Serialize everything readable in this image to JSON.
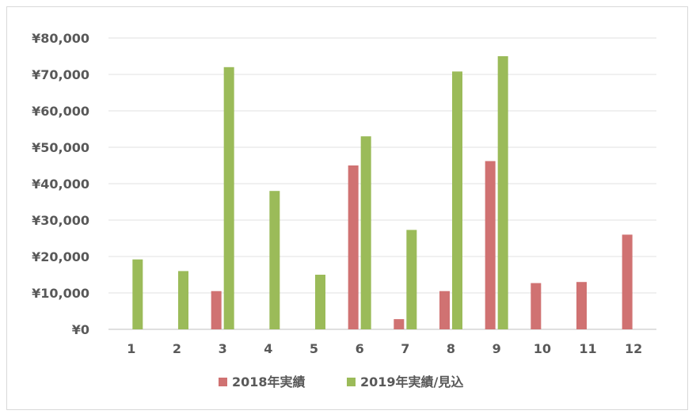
{
  "chart_data": {
    "type": "bar",
    "categories": [
      "1",
      "2",
      "3",
      "4",
      "5",
      "6",
      "7",
      "8",
      "9",
      "10",
      "11",
      "12"
    ],
    "series": [
      {
        "name": "2018年実績",
        "color": "#d07272",
        "values": [
          0,
          0,
          10500,
          0,
          0,
          45000,
          2800,
          10500,
          46200,
          12700,
          13000,
          26000
        ]
      },
      {
        "name": "2019年実績/見込",
        "color": "#9bbb59",
        "values": [
          19200,
          16000,
          72000,
          38000,
          15000,
          53000,
          27300,
          70800,
          75000,
          0,
          0,
          0
        ]
      }
    ],
    "yticks": [
      "¥0",
      "¥10,000",
      "¥20,000",
      "¥30,000",
      "¥40,000",
      "¥50,000",
      "¥60,000",
      "¥70,000",
      "¥80,000"
    ],
    "ylim": [
      0,
      80000
    ],
    "grid": true,
    "legend_position": "bottom"
  }
}
